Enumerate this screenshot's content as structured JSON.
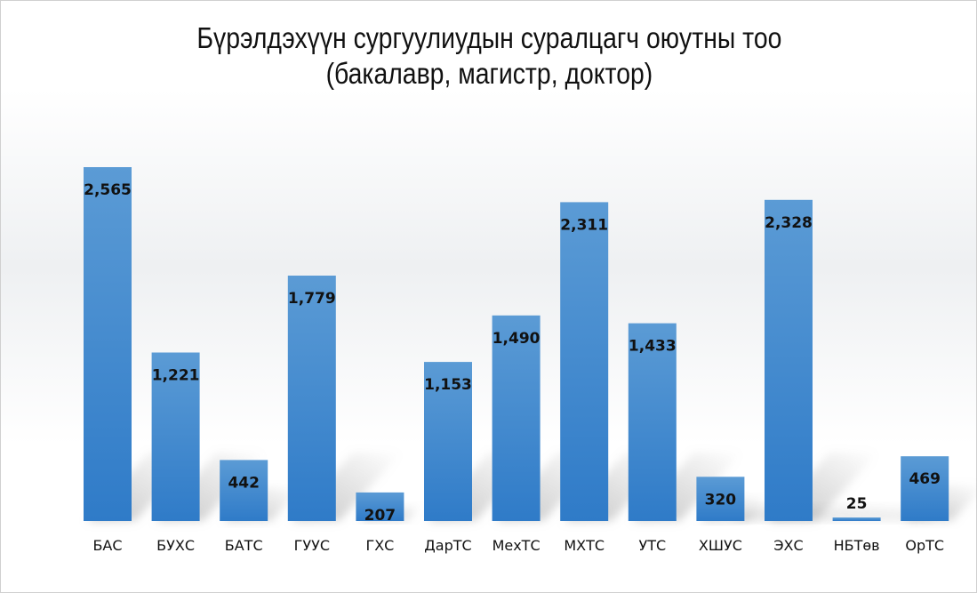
{
  "chart_data": {
    "type": "bar",
    "title_line1": "Бүрэлдэхүүн сургуулиудын суралцагч оюутны тоо",
    "title_line2": "(бакалавр, магистр, доктор)",
    "xlabel": "",
    "ylabel": "",
    "ylim": [
      0,
      2565
    ],
    "grid": false,
    "legend": "none",
    "bar_color": "#4a8fd2",
    "categories": [
      "БАС",
      "БУХС",
      "БАТС",
      "ГУУС",
      "ГХС",
      "ДарТС",
      "МехТС",
      "МХТС",
      "УТС",
      "ХШУС",
      "ЭХС",
      "НБТөв",
      "ОрТС"
    ],
    "values": [
      2565,
      1221,
      442,
      1779,
      207,
      1153,
      1490,
      2311,
      1433,
      320,
      2328,
      25,
      469
    ],
    "value_labels": [
      "2,565",
      "1,221",
      "442",
      "1,779",
      "207",
      "1,153",
      "1,490",
      "2,311",
      "1,433",
      "320",
      "2,328",
      "25",
      "469"
    ]
  }
}
